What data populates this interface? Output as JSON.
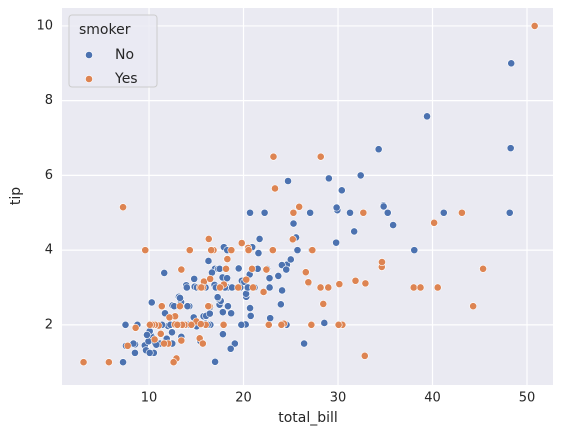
{
  "chart_data": {
    "type": "scatter",
    "xlabel": "total_bill",
    "ylabel": "tip",
    "xlim": [
      0.79,
      52.75
    ],
    "ylim": [
      0.39,
      10.48
    ],
    "xticks": [
      10,
      20,
      30,
      40,
      50
    ],
    "yticks": [
      2,
      4,
      6,
      8,
      10
    ],
    "grid": true,
    "legend_title": "smoker",
    "legend_position": "upper left",
    "series": [
      {
        "name": "No",
        "color": "#4c72b0",
        "x": [
          16.99,
          10.34,
          21.01,
          23.68,
          24.59,
          25.29,
          8.77,
          26.88,
          15.04,
          14.78,
          10.27,
          35.26,
          15.42,
          18.43,
          14.83,
          21.58,
          10.33,
          16.29,
          16.97,
          20.65,
          17.92,
          20.29,
          15.77,
          39.42,
          19.82,
          17.81,
          13.37,
          12.69,
          21.7,
          19.65,
          9.55,
          18.35,
          15.06,
          20.69,
          17.78,
          24.06,
          16.31,
          16.93,
          18.69,
          31.27,
          16.04,
          17.46,
          13.94,
          9.68,
          30.4,
          18.29,
          22.23,
          32.4,
          28.55,
          18.04,
          12.54,
          10.29,
          34.81,
          9.94,
          25.56,
          19.49,
          26.41,
          48.27,
          17.59,
          20.08,
          16.45,
          20.23,
          12.02,
          17.07,
          14.73,
          10.51,
          27.2,
          22.76,
          17.29,
          16.66,
          10.07,
          15.98,
          34.83,
          13.03,
          18.28,
          24.71,
          21.16,
          22.49,
          22.75,
          12.46,
          20.92,
          18.24,
          14.0,
          7.25,
          38.07,
          23.95,
          25.71,
          17.31,
          29.93,
          10.65,
          12.43,
          24.08,
          11.69,
          13.42,
          14.26,
          15.95,
          12.48,
          29.8,
          8.52,
          14.52,
          11.38,
          22.82,
          19.08,
          20.27,
          11.17,
          12.26,
          18.26,
          8.51,
          10.33,
          14.15,
          13.16,
          17.47,
          34.3,
          41.19,
          27.05,
          16.43,
          8.35,
          18.64,
          11.87,
          9.78,
          7.51,
          14.07,
          13.13,
          17.26,
          24.55,
          19.77,
          29.85,
          48.17,
          25.0,
          13.39,
          16.49,
          21.5,
          12.66,
          16.21,
          13.81,
          24.52,
          20.76,
          31.71,
          20.69,
          7.56,
          48.33,
          15.98,
          20.45,
          13.28,
          11.61,
          10.77,
          10.07,
          35.83,
          29.03,
          17.82,
          18.78
        ],
        "y": [
          1.01,
          1.66,
          3.5,
          3.31,
          3.61,
          4.71,
          2.0,
          3.12,
          1.96,
          3.23,
          1.71,
          5.0,
          1.57,
          3.0,
          3.02,
          3.92,
          1.67,
          3.71,
          3.5,
          3.35,
          4.08,
          2.75,
          2.23,
          7.58,
          3.18,
          2.34,
          2.0,
          2.0,
          4.3,
          3.0,
          1.45,
          2.5,
          3.0,
          2.45,
          3.27,
          3.6,
          2.0,
          3.07,
          2.31,
          5.0,
          2.24,
          2.54,
          3.06,
          1.32,
          5.6,
          3.0,
          5.0,
          6.0,
          2.05,
          3.0,
          2.5,
          2.6,
          5.2,
          1.56,
          4.34,
          3.51,
          1.5,
          6.73,
          2.64,
          3.15,
          2.47,
          2.01,
          1.97,
          3.0,
          2.2,
          1.25,
          4.0,
          3.0,
          2.71,
          3.4,
          1.83,
          2.03,
          5.17,
          2.0,
          4.0,
          5.85,
          3.0,
          3.5,
          3.25,
          1.5,
          4.08,
          3.76,
          3.0,
          1.0,
          4.0,
          2.55,
          4.0,
          3.5,
          5.07,
          1.5,
          1.8,
          2.92,
          2.31,
          1.68,
          2.5,
          2.0,
          2.52,
          4.2,
          1.48,
          2.0,
          2.0,
          2.18,
          1.5,
          2.83,
          1.5,
          2.0,
          3.25,
          1.25,
          2.0,
          2.0,
          2.75,
          3.5,
          6.7,
          5.0,
          5.0,
          2.3,
          1.5,
          1.36,
          1.63,
          1.73,
          2.0,
          2.5,
          2.0,
          2.74,
          2.0,
          2.0,
          5.14,
          5.0,
          3.75,
          2.61,
          2.0,
          3.5,
          2.5,
          2.0,
          2.0,
          3.48,
          2.24,
          4.5,
          5.0,
          1.44,
          9.0,
          3.0,
          3.0,
          2.72,
          3.39,
          1.47,
          1.25,
          4.67,
          5.92,
          1.75,
          3.0
        ]
      },
      {
        "name": "Yes",
        "color": "#dd8452",
        "x": [
          38.01,
          11.24,
          20.29,
          13.81,
          11.02,
          18.29,
          3.07,
          15.01,
          26.86,
          25.28,
          17.92,
          19.44,
          32.68,
          28.97,
          5.75,
          16.32,
          40.17,
          27.28,
          12.03,
          21.01,
          11.35,
          15.38,
          44.3,
          22.42,
          15.36,
          20.49,
          25.21,
          14.31,
          16.0,
          17.51,
          10.59,
          10.63,
          50.81,
          15.81,
          7.25,
          31.85,
          16.82,
          32.9,
          17.89,
          14.48,
          9.6,
          34.63,
          34.65,
          23.33,
          45.35,
          23.17,
          40.55,
          20.9,
          30.46,
          18.15,
          23.1,
          15.69,
          19.81,
          28.44,
          15.48,
          16.58,
          10.34,
          43.11,
          13.0,
          13.51,
          18.71,
          12.74,
          13.0,
          16.4,
          20.53,
          16.47,
          26.59,
          38.73,
          24.27,
          12.76,
          30.06,
          25.89,
          13.27,
          28.17,
          12.9,
          28.15,
          11.59,
          7.74,
          30.14,
          12.16,
          13.42,
          8.58,
          13.42,
          16.27,
          10.09,
          22.12,
          24.01,
          15.69,
          15.53,
          12.6,
          32.83,
          27.18,
          22.67
        ],
        "y": [
          3.0,
          1.76,
          3.21,
          2.0,
          1.98,
          3.76,
          1.0,
          2.09,
          3.14,
          5.0,
          3.08,
          3.0,
          5.0,
          3.0,
          1.0,
          4.3,
          4.73,
          4.0,
          1.5,
          3.0,
          2.5,
          3.0,
          2.5,
          3.48,
          1.64,
          4.06,
          4.29,
          4.0,
          2.0,
          3.0,
          1.61,
          2.0,
          10.0,
          3.16,
          5.15,
          3.18,
          4.0,
          3.11,
          2.0,
          2.0,
          4.0,
          3.55,
          3.68,
          5.65,
          3.5,
          6.5,
          3.0,
          3.5,
          2.0,
          3.5,
          4.0,
          1.5,
          4.19,
          2.56,
          2.02,
          4.0,
          2.0,
          5.0,
          2.0,
          2.0,
          4.0,
          2.01,
          2.0,
          2.5,
          4.0,
          3.23,
          3.41,
          3.0,
          2.03,
          2.23,
          2.0,
          5.16,
          2.5,
          6.5,
          1.1,
          3.0,
          1.5,
          1.44,
          3.09,
          2.2,
          3.48,
          1.92,
          1.58,
          2.5,
          2.0,
          2.88,
          2.0,
          3.0,
          3.0,
          1.0,
          1.17,
          2.0,
          2.0
        ]
      }
    ]
  }
}
